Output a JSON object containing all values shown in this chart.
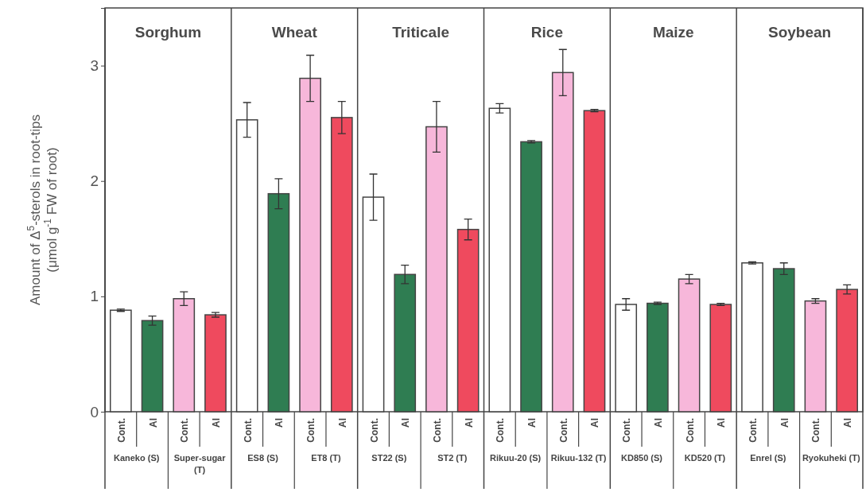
{
  "chart_data": {
    "type": "bar",
    "ylabel": "Amount of Δ$^{5}$-sterols in root-tips\n(μmol g$^{-1}$ FW of root)",
    "categories": [
      "Cont.",
      "Al",
      "Cont.",
      "Al",
      "Cont.",
      "Al",
      "Cont.",
      "Al",
      "Cont.",
      "Al",
      "Cont.",
      "Al",
      "Cont.",
      "Al",
      "Cont.",
      "Al",
      "Cont.",
      "Al",
      "Cont.",
      "Al",
      "Cont.",
      "Al",
      "Cont.",
      "Al"
    ],
    "values": [
      0.88,
      0.79,
      0.98,
      0.84,
      2.53,
      1.89,
      2.89,
      2.55,
      1.86,
      1.19,
      2.47,
      1.58,
      2.63,
      2.34,
      2.94,
      2.61,
      0.93,
      0.94,
      1.15,
      0.93,
      1.29,
      1.24,
      0.96,
      1.06
    ],
    "errors": [
      0.01,
      0.04,
      0.06,
      0.02,
      0.15,
      0.13,
      0.2,
      0.14,
      0.2,
      0.08,
      0.22,
      0.09,
      0.04,
      0.01,
      0.2,
      0.01,
      0.05,
      0.01,
      0.04,
      0.01,
      0.01,
      0.05,
      0.02,
      0.04
    ],
    "colors": [
      "#ffffff",
      "#2f7d52",
      "#f7b7da",
      "#ef4a5e",
      "#ffffff",
      "#2f7d52",
      "#f7b7da",
      "#ef4a5e",
      "#ffffff",
      "#2f7d52",
      "#f7b7da",
      "#ef4a5e",
      "#ffffff",
      "#2f7d52",
      "#f7b7da",
      "#ef4a5e",
      "#ffffff",
      "#2f7d52",
      "#f7b7da",
      "#ef4a5e",
      "#ffffff",
      "#2f7d52",
      "#f7b7da",
      "#ef4a5e"
    ],
    "ylim": [
      0,
      3.5
    ],
    "yticks": [
      0,
      1,
      2,
      3
    ],
    "annotations": [
      "Sorghum",
      "Wheat",
      "Triticale",
      "Rice",
      "Maize",
      "Soybean",
      "Kaneko (S)",
      "Super-sugar (T)",
      "ES8 (S)",
      "ET8 (T)",
      "ST22 (S)",
      "ST2 (T)",
      "Rikuu-20 (S)",
      "Rikuu-132 (T)",
      "KD850 (S)",
      "KD520 (T)",
      "Enrel (S)",
      "Ryokuheki (T)"
    ]
  }
}
